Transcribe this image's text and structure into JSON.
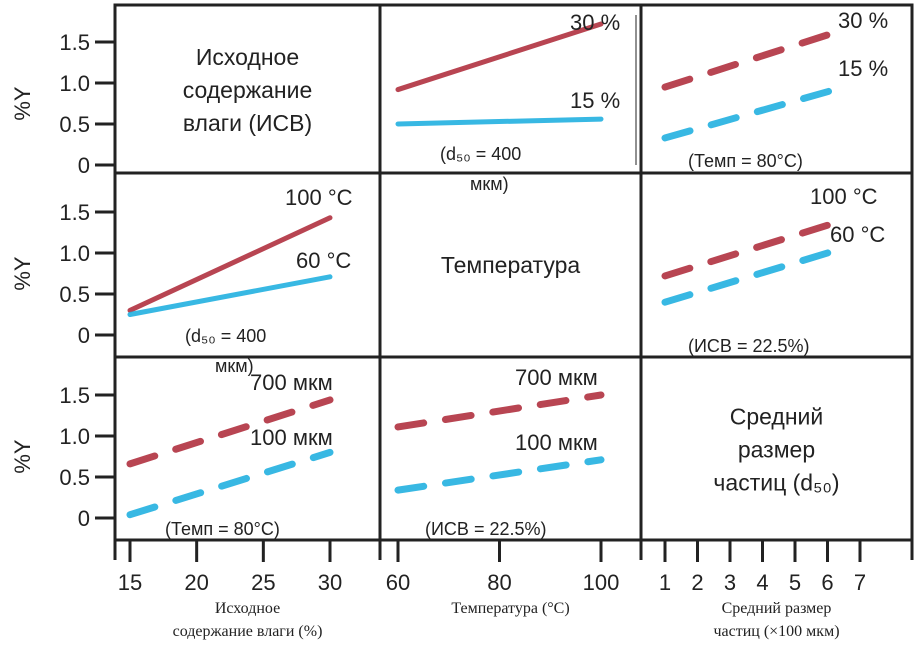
{
  "chart_data": {
    "type": "line",
    "ylabel": "%Y",
    "yticks": [
      "0",
      "0.5",
      "1.0",
      "1.5"
    ],
    "colors": {
      "high": "#b0313f",
      "low": "#22b0e0",
      "frame": "#222222"
    },
    "columns": [
      {
        "xlabel": [
          "Исходное",
          "содержание влаги (%)"
        ],
        "xticks": [
          15,
          20,
          25,
          30
        ],
        "xlim": [
          15,
          30
        ]
      },
      {
        "xlabel": [
          "Температура (°C)"
        ],
        "xticks": [
          60,
          80,
          100
        ],
        "xlim": [
          60,
          100
        ]
      },
      {
        "xlabel": [
          "Средний размер",
          "частиц (×100 мкм)"
        ],
        "xticks": [
          1,
          2,
          3,
          4,
          5,
          6,
          7
        ],
        "xlim": [
          1,
          7
        ]
      }
    ],
    "diagonal": [
      [
        "Исходное",
        "содержание",
        "влаги (ИСВ)"
      ],
      [
        "Температура"
      ],
      [
        "Средний",
        "размер",
        "частиц (d₅₀)"
      ]
    ],
    "panels": [
      {
        "row": 0,
        "col": 1,
        "note": [
          "(d₅₀ = 400",
          "мкм)"
        ],
        "series": [
          {
            "name": "30 %",
            "style": "solid",
            "color": "high",
            "x": [
              60,
              100
            ],
            "y": [
              0.92,
              1.72
            ]
          },
          {
            "name": "15 %",
            "style": "solid",
            "color": "low",
            "x": [
              60,
              100
            ],
            "y": [
              0.5,
              0.56
            ]
          }
        ]
      },
      {
        "row": 0,
        "col": 2,
        "note": [
          "(Темп = 80°C)"
        ],
        "series": [
          {
            "name": "30 %",
            "style": "dashed",
            "color": "high",
            "x": [
              1,
              6.5
            ],
            "y": [
              0.95,
              1.65
            ]
          },
          {
            "name": "15 %",
            "style": "dashed",
            "color": "low",
            "x": [
              1,
              6.5
            ],
            "y": [
              0.33,
              0.95
            ]
          }
        ]
      },
      {
        "row": 1,
        "col": 0,
        "note": [
          "(d₅₀ = 400",
          "мкм)"
        ],
        "series": [
          {
            "name": "100 °C",
            "style": "solid",
            "color": "high",
            "x": [
              15,
              30
            ],
            "y": [
              0.3,
              1.43
            ]
          },
          {
            "name": "60 °C",
            "style": "solid",
            "color": "low",
            "x": [
              15,
              30
            ],
            "y": [
              0.25,
              0.71
            ]
          }
        ]
      },
      {
        "row": 1,
        "col": 2,
        "note": [
          "(ИСВ = 22.5%)"
        ],
        "series": [
          {
            "name": "100 °C",
            "style": "dashed",
            "color": "high",
            "x": [
              1,
              6.5
            ],
            "y": [
              0.72,
              1.4
            ]
          },
          {
            "name": "60 °C",
            "style": "dashed",
            "color": "low",
            "x": [
              1,
              6.5
            ],
            "y": [
              0.4,
              1.06
            ]
          }
        ]
      },
      {
        "row": 2,
        "col": 0,
        "note": [
          "(Темп = 80°C)"
        ],
        "series": [
          {
            "name": "700 мкм",
            "style": "dashed",
            "color": "high",
            "x": [
              15,
              30
            ],
            "y": [
              0.66,
              1.44
            ]
          },
          {
            "name": "100 мкм",
            "style": "dashed",
            "color": "low",
            "x": [
              15,
              30
            ],
            "y": [
              0.04,
              0.8
            ]
          }
        ]
      },
      {
        "row": 2,
        "col": 1,
        "note": [
          "(ИСВ = 22.5%)"
        ],
        "series": [
          {
            "name": "700 мкм",
            "style": "dashed",
            "color": "high",
            "x": [
              60,
              100
            ],
            "y": [
              1.11,
              1.5
            ]
          },
          {
            "name": "100 мкм",
            "style": "dashed",
            "color": "low",
            "x": [
              60,
              100
            ],
            "y": [
              0.34,
              0.71
            ]
          }
        ]
      }
    ]
  }
}
